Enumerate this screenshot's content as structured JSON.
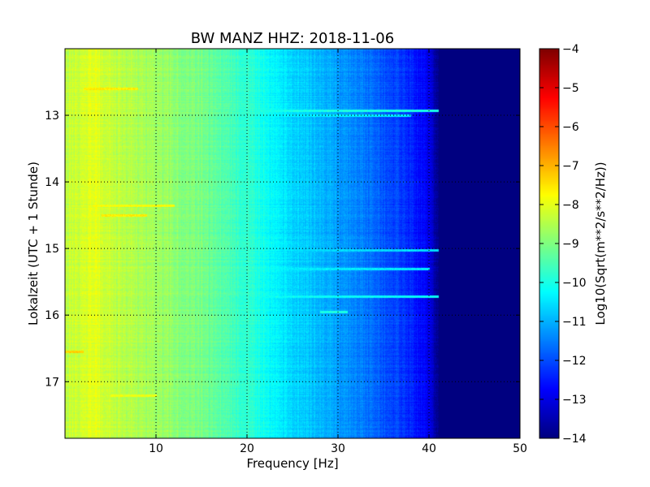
{
  "chart_data": {
    "type": "heatmap",
    "title": "BW MANZ HHZ: 2018-11-06",
    "xlabel": "Frequency [Hz]",
    "ylabel": "Lokalzeit (UTC + 1 Stunde)",
    "colorbar_label": "Log10(Sqrt(m**2/s**2/Hz))",
    "xlim": [
      0,
      50
    ],
    "ylim": [
      12.0,
      17.85
    ],
    "y_inverted": true,
    "x_ticks": [
      10,
      20,
      30,
      40,
      50
    ],
    "x_tick_labels": [
      "10",
      "20",
      "30",
      "40",
      "50"
    ],
    "y_ticks": [
      13,
      14,
      15,
      16,
      17
    ],
    "y_tick_labels": [
      "13",
      "14",
      "15",
      "16",
      "17"
    ],
    "color_range": [
      -14,
      -4
    ],
    "colorbar_ticks": [
      -4,
      -5,
      -6,
      -7,
      -8,
      -9,
      -10,
      -11,
      -12,
      -13,
      -14
    ],
    "colorbar_tick_labels": [
      "−4",
      "−5",
      "−6",
      "−7",
      "−8",
      "−9",
      "−10",
      "−11",
      "−12",
      "−13",
      "−14"
    ],
    "colormap": "jet",
    "grid": true,
    "grid_style": "dotted",
    "spectrum_profile": {
      "frequency": [
        0,
        3,
        5,
        8,
        10,
        15,
        20,
        25,
        30,
        35,
        38,
        40,
        41,
        50
      ],
      "log_psd": [
        -8.4,
        -8.0,
        -8.3,
        -8.6,
        -8.7,
        -9.1,
        -9.8,
        -10.6,
        -11.2,
        -11.9,
        -12.4,
        -13.0,
        -14.0,
        -14.0
      ]
    },
    "bands": [
      {
        "time": 12.6,
        "from": 2,
        "to": 8,
        "value": -7.6
      },
      {
        "time": 12.93,
        "from": 10,
        "to": 43,
        "value": -10.0
      },
      {
        "time": 13.0,
        "from": 10,
        "to": 38,
        "value": -10.4
      },
      {
        "time": 14.35,
        "from": 3,
        "to": 12,
        "value": -7.8
      },
      {
        "time": 14.5,
        "from": 4,
        "to": 9,
        "value": -7.6
      },
      {
        "time": 15.02,
        "from": 20,
        "to": 41,
        "value": -10.6
      },
      {
        "time": 15.3,
        "from": 20,
        "to": 40,
        "value": -10.4
      },
      {
        "time": 15.72,
        "from": 20,
        "to": 42,
        "value": -10.2
      },
      {
        "time": 15.95,
        "from": 28,
        "to": 31,
        "value": -10.0
      },
      {
        "time": 16.55,
        "from": 0,
        "to": 2,
        "value": -7.3
      },
      {
        "time": 17.2,
        "from": 5,
        "to": 10,
        "value": -7.9
      }
    ]
  },
  "colors": {
    "background": "#ffffff",
    "axes": "#000000"
  }
}
